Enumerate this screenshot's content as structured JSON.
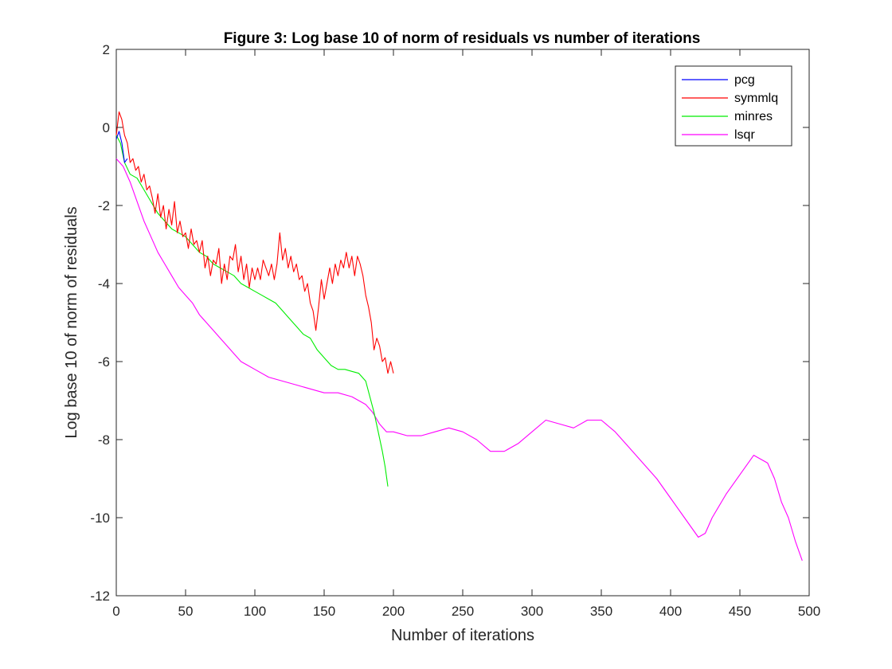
{
  "chart_data": {
    "type": "line",
    "title": "Figure 3: Log base 10 of norm of residuals vs number of iterations",
    "xlabel": "Number of iterations",
    "ylabel": "Log base 10 of norm of residuals",
    "xlim": [
      0,
      500
    ],
    "ylim": [
      -12,
      2
    ],
    "xticks": [
      0,
      50,
      100,
      150,
      200,
      250,
      300,
      350,
      400,
      450,
      500
    ],
    "yticks": [
      -12,
      -10,
      -8,
      -6,
      -4,
      -2,
      0,
      2
    ],
    "grid": false,
    "legend_position": "top-right",
    "series": [
      {
        "name": "pcg",
        "color": "#0000ff",
        "points": [
          [
            0,
            -0.3
          ],
          [
            2,
            -0.1
          ],
          [
            4,
            -0.4
          ],
          [
            6,
            -0.9
          ],
          [
            8,
            -0.8
          ]
        ]
      },
      {
        "name": "symmlq",
        "color": "#ff0000",
        "points": [
          [
            0,
            -0.2
          ],
          [
            2,
            0.4
          ],
          [
            4,
            0.2
          ],
          [
            6,
            -0.2
          ],
          [
            8,
            -0.4
          ],
          [
            10,
            -0.9
          ],
          [
            12,
            -0.8
          ],
          [
            14,
            -1.1
          ],
          [
            16,
            -1.0
          ],
          [
            18,
            -1.4
          ],
          [
            20,
            -1.2
          ],
          [
            22,
            -1.6
          ],
          [
            24,
            -1.5
          ],
          [
            26,
            -1.8
          ],
          [
            28,
            -2.2
          ],
          [
            30,
            -1.7
          ],
          [
            32,
            -2.3
          ],
          [
            34,
            -2.0
          ],
          [
            36,
            -2.6
          ],
          [
            38,
            -2.1
          ],
          [
            40,
            -2.5
          ],
          [
            42,
            -1.9
          ],
          [
            44,
            -2.7
          ],
          [
            46,
            -2.4
          ],
          [
            48,
            -2.8
          ],
          [
            50,
            -2.7
          ],
          [
            52,
            -3.1
          ],
          [
            54,
            -2.6
          ],
          [
            56,
            -3.0
          ],
          [
            58,
            -2.9
          ],
          [
            60,
            -3.2
          ],
          [
            62,
            -2.9
          ],
          [
            64,
            -3.6
          ],
          [
            66,
            -3.3
          ],
          [
            68,
            -3.8
          ],
          [
            70,
            -3.4
          ],
          [
            72,
            -3.5
          ],
          [
            74,
            -3.1
          ],
          [
            76,
            -4.0
          ],
          [
            78,
            -3.5
          ],
          [
            80,
            -3.9
          ],
          [
            82,
            -3.3
          ],
          [
            84,
            -3.4
          ],
          [
            86,
            -3.0
          ],
          [
            88,
            -3.7
          ],
          [
            90,
            -3.3
          ],
          [
            92,
            -3.9
          ],
          [
            94,
            -3.5
          ],
          [
            96,
            -4.1
          ],
          [
            98,
            -3.6
          ],
          [
            100,
            -3.9
          ],
          [
            102,
            -3.6
          ],
          [
            104,
            -3.9
          ],
          [
            106,
            -3.4
          ],
          [
            108,
            -3.6
          ],
          [
            110,
            -3.8
          ],
          [
            112,
            -3.5
          ],
          [
            114,
            -3.9
          ],
          [
            116,
            -3.5
          ],
          [
            118,
            -2.7
          ],
          [
            120,
            -3.4
          ],
          [
            122,
            -3.1
          ],
          [
            124,
            -3.6
          ],
          [
            126,
            -3.3
          ],
          [
            128,
            -3.7
          ],
          [
            130,
            -3.5
          ],
          [
            132,
            -3.9
          ],
          [
            134,
            -3.8
          ],
          [
            136,
            -4.2
          ],
          [
            138,
            -4.0
          ],
          [
            140,
            -4.5
          ],
          [
            142,
            -4.7
          ],
          [
            144,
            -5.2
          ],
          [
            146,
            -4.6
          ],
          [
            148,
            -3.9
          ],
          [
            150,
            -4.4
          ],
          [
            152,
            -4.0
          ],
          [
            154,
            -3.6
          ],
          [
            156,
            -4.0
          ],
          [
            158,
            -3.5
          ],
          [
            160,
            -3.8
          ],
          [
            162,
            -3.4
          ],
          [
            164,
            -3.6
          ],
          [
            166,
            -3.2
          ],
          [
            168,
            -3.6
          ],
          [
            170,
            -3.3
          ],
          [
            172,
            -3.8
          ],
          [
            174,
            -3.3
          ],
          [
            176,
            -3.5
          ],
          [
            178,
            -3.8
          ],
          [
            180,
            -4.3
          ],
          [
            182,
            -4.6
          ],
          [
            184,
            -5.0
          ],
          [
            186,
            -5.7
          ],
          [
            188,
            -5.4
          ],
          [
            190,
            -5.6
          ],
          [
            192,
            -6.0
          ],
          [
            194,
            -5.9
          ],
          [
            196,
            -6.3
          ],
          [
            198,
            -6.0
          ],
          [
            200,
            -6.3
          ]
        ]
      },
      {
        "name": "minres",
        "color": "#00ee00",
        "points": [
          [
            0,
            -0.2
          ],
          [
            3,
            -0.4
          ],
          [
            6,
            -0.9
          ],
          [
            10,
            -1.2
          ],
          [
            15,
            -1.3
          ],
          [
            20,
            -1.6
          ],
          [
            25,
            -1.9
          ],
          [
            30,
            -2.2
          ],
          [
            35,
            -2.4
          ],
          [
            40,
            -2.6
          ],
          [
            45,
            -2.7
          ],
          [
            50,
            -2.8
          ],
          [
            55,
            -3.0
          ],
          [
            60,
            -3.2
          ],
          [
            65,
            -3.3
          ],
          [
            70,
            -3.5
          ],
          [
            75,
            -3.6
          ],
          [
            80,
            -3.7
          ],
          [
            85,
            -3.8
          ],
          [
            90,
            -4.0
          ],
          [
            95,
            -4.1
          ],
          [
            100,
            -4.2
          ],
          [
            105,
            -4.3
          ],
          [
            110,
            -4.4
          ],
          [
            115,
            -4.5
          ],
          [
            120,
            -4.7
          ],
          [
            125,
            -4.9
          ],
          [
            130,
            -5.1
          ],
          [
            135,
            -5.3
          ],
          [
            140,
            -5.4
          ],
          [
            145,
            -5.7
          ],
          [
            150,
            -5.9
          ],
          [
            155,
            -6.1
          ],
          [
            160,
            -6.2
          ],
          [
            165,
            -6.2
          ],
          [
            170,
            -6.25
          ],
          [
            175,
            -6.3
          ],
          [
            180,
            -6.5
          ],
          [
            183,
            -6.9
          ],
          [
            186,
            -7.3
          ],
          [
            189,
            -7.8
          ],
          [
            192,
            -8.3
          ],
          [
            194,
            -8.7
          ],
          [
            196,
            -9.2
          ]
        ]
      },
      {
        "name": "lsqr",
        "color": "#ff00ff",
        "points": [
          [
            0,
            -0.8
          ],
          [
            5,
            -1.0
          ],
          [
            10,
            -1.4
          ],
          [
            15,
            -1.9
          ],
          [
            20,
            -2.4
          ],
          [
            25,
            -2.8
          ],
          [
            30,
            -3.2
          ],
          [
            35,
            -3.5
          ],
          [
            40,
            -3.8
          ],
          [
            45,
            -4.1
          ],
          [
            50,
            -4.3
          ],
          [
            55,
            -4.5
          ],
          [
            60,
            -4.8
          ],
          [
            65,
            -5.0
          ],
          [
            70,
            -5.2
          ],
          [
            75,
            -5.4
          ],
          [
            80,
            -5.6
          ],
          [
            85,
            -5.8
          ],
          [
            90,
            -6.0
          ],
          [
            95,
            -6.1
          ],
          [
            100,
            -6.2
          ],
          [
            110,
            -6.4
          ],
          [
            120,
            -6.5
          ],
          [
            130,
            -6.6
          ],
          [
            140,
            -6.7
          ],
          [
            150,
            -6.8
          ],
          [
            160,
            -6.8
          ],
          [
            170,
            -6.9
          ],
          [
            180,
            -7.1
          ],
          [
            185,
            -7.3
          ],
          [
            190,
            -7.6
          ],
          [
            195,
            -7.8
          ],
          [
            200,
            -7.8
          ],
          [
            210,
            -7.9
          ],
          [
            220,
            -7.9
          ],
          [
            230,
            -7.8
          ],
          [
            240,
            -7.7
          ],
          [
            250,
            -7.8
          ],
          [
            260,
            -8.0
          ],
          [
            270,
            -8.3
          ],
          [
            280,
            -8.3
          ],
          [
            290,
            -8.1
          ],
          [
            300,
            -7.8
          ],
          [
            310,
            -7.5
          ],
          [
            320,
            -7.6
          ],
          [
            330,
            -7.7
          ],
          [
            340,
            -7.5
          ],
          [
            350,
            -7.5
          ],
          [
            360,
            -7.8
          ],
          [
            370,
            -8.2
          ],
          [
            380,
            -8.6
          ],
          [
            390,
            -9.0
          ],
          [
            400,
            -9.5
          ],
          [
            410,
            -10.0
          ],
          [
            420,
            -10.5
          ],
          [
            425,
            -10.4
          ],
          [
            430,
            -10.0
          ],
          [
            440,
            -9.4
          ],
          [
            450,
            -8.9
          ],
          [
            460,
            -8.4
          ],
          [
            470,
            -8.6
          ],
          [
            475,
            -9.0
          ],
          [
            480,
            -9.6
          ],
          [
            485,
            -10.0
          ],
          [
            490,
            -10.6
          ],
          [
            495,
            -11.1
          ]
        ]
      }
    ]
  }
}
